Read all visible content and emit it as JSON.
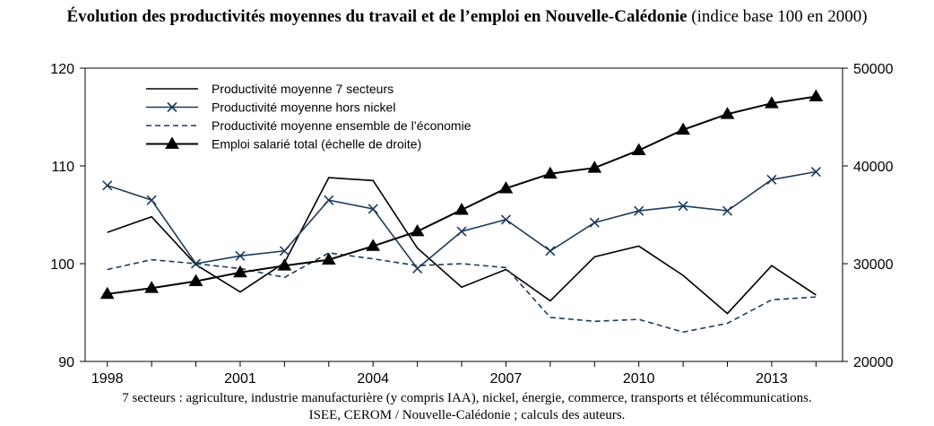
{
  "title_bold": "Évolution des productivités moyennes du travail et de l’emploi en Nouvelle-Calédonie",
  "title_rest": " (indice base 100 en 2000)",
  "footnote_1": "7 secteurs : agriculture, industrie manufacturière (y compris IAA), nickel, énergie, commerce, transports et télécommunications.",
  "footnote_2": "ISEE, CEROM / Nouvelle-Calédonie ; calculs des auteurs.",
  "chart_data": {
    "type": "line",
    "x": [
      1998,
      1999,
      2000,
      2001,
      2002,
      2003,
      2004,
      2005,
      2006,
      2007,
      2008,
      2009,
      2010,
      2011,
      2012,
      2013,
      2014
    ],
    "xlim": [
      1997.5,
      2014.6
    ],
    "x_ticks": [
      "1998",
      "2001",
      "2004",
      "2007",
      "2010",
      "2013"
    ],
    "y_left": {
      "ylim": [
        90,
        120
      ],
      "ticks": [
        "90",
        "100",
        "110",
        "120"
      ]
    },
    "y_right": {
      "ylim": [
        20000,
        50000
      ],
      "ticks": [
        "20000",
        "30000",
        "40000",
        "50000"
      ]
    },
    "legend_position": "top-left",
    "series": [
      {
        "name": "Productivité moyenne 7 secteurs",
        "axis": "left",
        "style": "solid",
        "color": "#000000",
        "values": [
          103.2,
          104.8,
          99.9,
          97.1,
          100.1,
          108.8,
          108.5,
          101.6,
          97.6,
          99.4,
          96.2,
          100.7,
          101.8,
          98.8,
          94.9,
          99.8,
          96.8
        ]
      },
      {
        "name": "Productivité moyenne hors nickel",
        "axis": "left",
        "style": "cross",
        "color": "#1f3a5a",
        "values": [
          108.0,
          106.5,
          100.0,
          100.8,
          101.3,
          106.5,
          105.6,
          99.5,
          103.3,
          104.5,
          101.3,
          104.2,
          105.4,
          105.9,
          105.4,
          108.6,
          109.4
        ]
      },
      {
        "name": "Productivité moyenne ensemble de l’économie",
        "axis": "left",
        "style": "dashed",
        "color": "#1f3a5a",
        "values": [
          99.4,
          100.4,
          100.0,
          99.5,
          98.6,
          101.1,
          100.5,
          99.8,
          100.0,
          99.6,
          94.5,
          94.1,
          94.3,
          93.0,
          93.9,
          96.3,
          96.6
        ]
      },
      {
        "name": "Emploi salarié total (échelle de droite)",
        "axis": "right",
        "style": "triangle",
        "color": "#000000",
        "values": [
          26900,
          27500,
          28200,
          29100,
          29800,
          30400,
          31800,
          33300,
          35500,
          37700,
          39200,
          39800,
          41600,
          43700,
          45300,
          46400,
          47100
        ]
      }
    ]
  }
}
